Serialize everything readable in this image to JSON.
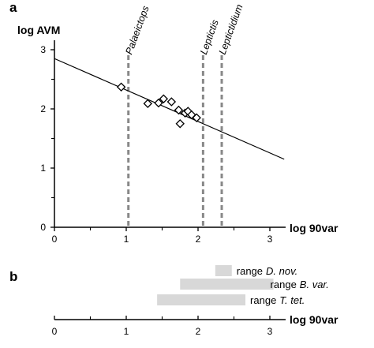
{
  "chart_data": [
    {
      "panel": "a",
      "type": "scatter",
      "ylabel": "log AVM",
      "xlabel": "log 90var",
      "xlim": [
        0,
        3.5
      ],
      "ylim": [
        0,
        3.2
      ],
      "x_ticks": [
        "0",
        "1",
        "2",
        "3"
      ],
      "y_ticks": [
        "0",
        "1",
        "2",
        "3"
      ],
      "points": [
        {
          "x": 0.93,
          "y": 2.37
        },
        {
          "x": 1.3,
          "y": 2.09
        },
        {
          "x": 1.45,
          "y": 2.1
        },
        {
          "x": 1.52,
          "y": 2.17
        },
        {
          "x": 1.63,
          "y": 2.12
        },
        {
          "x": 1.73,
          "y": 1.98
        },
        {
          "x": 1.82,
          "y": 1.93
        },
        {
          "x": 1.86,
          "y": 1.96
        },
        {
          "x": 1.91,
          "y": 1.9
        },
        {
          "x": 1.98,
          "y": 1.85
        },
        {
          "x": 1.75,
          "y": 1.75
        }
      ],
      "regression_line": {
        "x1": 0,
        "y1": 2.85,
        "x2": 3.2,
        "y2": 1.15
      },
      "reference_lines": [
        {
          "label": "Palaeictops",
          "x": 1.03
        },
        {
          "label": "Leptictis",
          "x": 2.07
        },
        {
          "label": "Leptictidium",
          "x": 2.33
        }
      ],
      "grid": false
    },
    {
      "panel": "b",
      "type": "range",
      "xlabel": "log 90var",
      "x_ticks": [
        "0",
        "1",
        "2",
        "3"
      ],
      "ranges": [
        {
          "prefix": "range",
          "name": "D. nov.",
          "min": 2.24,
          "max": 2.47
        },
        {
          "prefix": "range",
          "name": "B. var.",
          "min": 1.75,
          "max": 3.05
        },
        {
          "prefix": "range",
          "name": "T. tet.",
          "min": 1.43,
          "max": 2.66
        }
      ]
    }
  ],
  "colors": {
    "ink": "#000000",
    "reference_line": "#888888",
    "range_bar": "#d8d8d8",
    "marker_fill": "#ffffff"
  }
}
